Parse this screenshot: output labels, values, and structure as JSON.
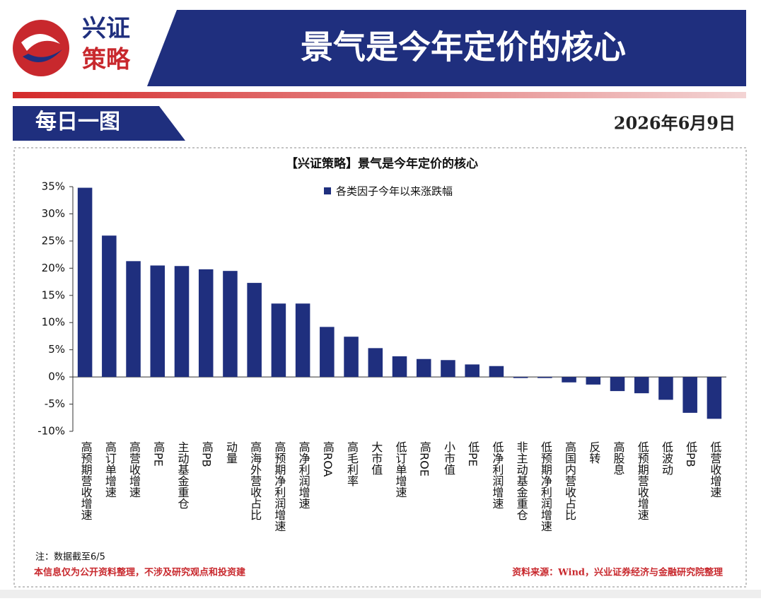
{
  "header": {
    "logo_top": "兴证",
    "logo_bottom": "策略",
    "title": "景气是今年定价的核心",
    "section": "每日一图",
    "date": "2026年6月9日"
  },
  "chart_data": {
    "type": "bar",
    "title": "【兴证策略】景气是今年定价的核心",
    "categories": [
      "高预期营收增速",
      "高订单增速",
      "高营收增速",
      "高PE",
      "主动基金重仓",
      "高PB",
      "动量",
      "高海外营收占比",
      "高预期净利润增速",
      "高净利润增速",
      "高ROA",
      "高毛利率",
      "大市值",
      "低订单增速",
      "高ROE",
      "小市值",
      "低PE",
      "低净利润增速",
      "非主动基金重仓",
      "低预期净利润增速",
      "高国内营收占比",
      "反转",
      "高股息",
      "低预期营收增速",
      "低波动",
      "低PB",
      "低营收增速"
    ],
    "series": [
      {
        "name": "各类因子今年以来涨跌幅",
        "color": "#1f2f7e",
        "values": [
          34.8,
          26.0,
          21.3,
          20.5,
          20.4,
          19.8,
          19.5,
          17.3,
          13.5,
          13.5,
          9.2,
          7.4,
          5.3,
          3.8,
          3.3,
          3.1,
          2.3,
          2.0,
          -0.2,
          -0.2,
          -1.0,
          -1.4,
          -2.6,
          -3.0,
          -4.2,
          -6.6,
          -7.7
        ]
      }
    ],
    "ylim": [
      -10,
      35
    ],
    "yticks": [
      {
        "value": -10,
        "label": "-10%"
      },
      {
        "value": -5,
        "label": "-5%"
      },
      {
        "value": 0,
        "label": "0%"
      },
      {
        "value": 5,
        "label": "5%"
      },
      {
        "value": 10,
        "label": "10%"
      },
      {
        "value": 15,
        "label": "15%"
      },
      {
        "value": 20,
        "label": "20%"
      },
      {
        "value": 25,
        "label": "25%"
      },
      {
        "value": 30,
        "label": "30%"
      },
      {
        "value": 35,
        "label": "35%"
      }
    ],
    "legend": "top"
  },
  "footer": {
    "note": "注：数据截至6/5",
    "disclaimer": "本信息仅为公开资料整理，不涉及研究观点和投资建",
    "source": "资料来源：Wind，兴业证券经济与金融研究院整理"
  }
}
